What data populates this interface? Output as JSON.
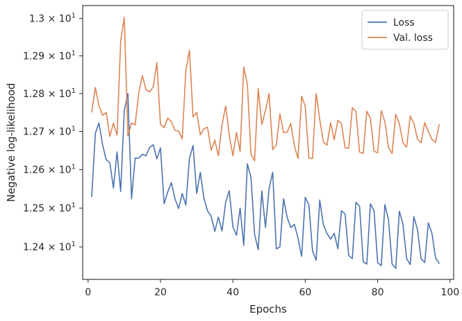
{
  "chart_data": {
    "type": "line",
    "xlabel": "Epochs",
    "ylabel": "Negative log-likelihood",
    "xlim": [
      -1.5,
      101
    ],
    "ylim": [
      12.317,
      13.035
    ],
    "y_scale": "log",
    "x_ticks": [
      {
        "value": 0,
        "label": "0"
      },
      {
        "value": 20,
        "label": "20"
      },
      {
        "value": 40,
        "label": "40"
      },
      {
        "value": 60,
        "label": "60"
      },
      {
        "value": 80,
        "label": "80"
      },
      {
        "value": 100,
        "label": "100"
      }
    ],
    "y_ticks": [
      {
        "value": 12.4,
        "mantissa": "1.24",
        "base": "10",
        "exp": "1"
      },
      {
        "value": 12.5,
        "mantissa": "1.25",
        "base": "10",
        "exp": "1"
      },
      {
        "value": 12.6,
        "mantissa": "1.26",
        "base": "10",
        "exp": "1"
      },
      {
        "value": 12.7,
        "mantissa": "1.27",
        "base": "10",
        "exp": "1"
      },
      {
        "value": 12.8,
        "mantissa": "1.28",
        "base": "10",
        "exp": "1"
      },
      {
        "value": 12.9,
        "mantissa": "1.29",
        "base": "10",
        "exp": "1"
      },
      {
        "value": 13.0,
        "mantissa": "1.3",
        "base": "10",
        "exp": "1"
      }
    ],
    "grid": false,
    "legend_position": "top-right",
    "x": [
      1,
      2,
      3,
      4,
      5,
      6,
      7,
      8,
      9,
      10,
      11,
      12,
      13,
      14,
      15,
      16,
      17,
      18,
      19,
      20,
      21,
      22,
      23,
      24,
      25,
      26,
      27,
      28,
      29,
      30,
      31,
      32,
      33,
      34,
      35,
      36,
      37,
      38,
      39,
      40,
      41,
      42,
      43,
      44,
      45,
      46,
      47,
      48,
      49,
      50,
      51,
      52,
      53,
      54,
      55,
      56,
      57,
      58,
      59,
      60,
      61,
      62,
      63,
      64,
      65,
      66,
      67,
      68,
      69,
      70,
      71,
      72,
      73,
      74,
      75,
      76,
      77,
      78,
      79,
      80,
      81,
      82,
      83,
      84,
      85,
      86,
      87,
      88,
      89,
      90,
      91,
      92,
      93,
      94,
      95,
      96,
      97
    ],
    "series": [
      {
        "name": "Loss",
        "color": "#4c72b0",
        "values": [
          12.53,
          12.695,
          12.722,
          12.665,
          12.626,
          12.618,
          12.552,
          12.646,
          12.543,
          12.755,
          12.8,
          12.524,
          12.63,
          12.63,
          12.64,
          12.636,
          12.658,
          12.665,
          12.628,
          12.657,
          12.511,
          12.542,
          12.566,
          12.524,
          12.499,
          12.538,
          12.508,
          12.629,
          12.663,
          12.538,
          12.593,
          12.525,
          12.493,
          12.479,
          12.44,
          12.477,
          12.441,
          12.515,
          12.545,
          12.452,
          12.43,
          12.5,
          12.404,
          12.615,
          12.58,
          12.432,
          12.393,
          12.545,
          12.45,
          12.55,
          12.593,
          12.395,
          12.4,
          12.524,
          12.476,
          12.45,
          12.458,
          12.422,
          12.376,
          12.528,
          12.508,
          12.39,
          12.366,
          12.521,
          12.457,
          12.435,
          12.42,
          12.435,
          12.395,
          12.493,
          12.485,
          12.378,
          12.37,
          12.515,
          12.505,
          12.362,
          12.356,
          12.511,
          12.493,
          12.36,
          12.352,
          12.509,
          12.47,
          12.356,
          12.345,
          12.492,
          12.458,
          12.37,
          12.355,
          12.478,
          12.445,
          12.37,
          12.36,
          12.462,
          12.435,
          12.372,
          12.358
        ]
      },
      {
        "name": "Val. loss",
        "color": "#dd8452",
        "values": [
          12.751,
          12.816,
          12.767,
          12.742,
          12.75,
          12.687,
          12.722,
          12.69,
          12.94,
          13.003,
          12.688,
          12.722,
          12.717,
          12.802,
          12.847,
          12.81,
          12.804,
          12.818,
          12.882,
          12.718,
          12.71,
          12.735,
          12.726,
          12.703,
          12.701,
          12.68,
          12.86,
          12.915,
          12.738,
          12.75,
          12.691,
          12.707,
          12.711,
          12.65,
          12.677,
          12.636,
          12.717,
          12.767,
          12.69,
          12.636,
          12.697,
          12.647,
          12.87,
          12.825,
          12.64,
          12.623,
          12.813,
          12.718,
          12.755,
          12.8,
          12.652,
          12.664,
          12.746,
          12.697,
          12.698,
          12.721,
          12.662,
          12.629,
          12.793,
          12.766,
          12.63,
          12.629,
          12.8,
          12.732,
          12.672,
          12.664,
          12.723,
          12.678,
          12.729,
          12.72,
          12.657,
          12.656,
          12.762,
          12.753,
          12.646,
          12.642,
          12.753,
          12.735,
          12.648,
          12.644,
          12.755,
          12.725,
          12.658,
          12.642,
          12.745,
          12.72,
          12.67,
          12.659,
          12.74,
          12.722,
          12.68,
          12.67,
          12.723,
          12.7,
          12.679,
          12.671,
          12.718
        ]
      }
    ]
  }
}
